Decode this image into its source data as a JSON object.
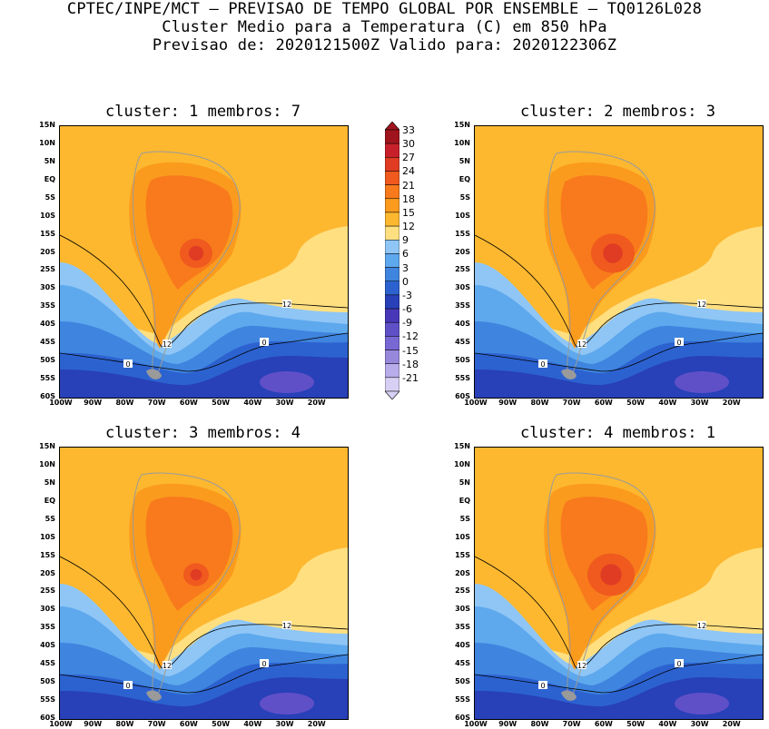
{
  "header": {
    "line1": "CPTEC/INPE/MCT – PREVISAO DE TEMPO GLOBAL POR ENSEMBLE – TQ0126L028",
    "line2": "Cluster Medio para a Temperatura (C) em 850 hPa",
    "line3": "Previsao de: 2020121500Z   Valido para: 2020122306Z"
  },
  "panels": [
    {
      "title": "cluster: 1  membros: 7"
    },
    {
      "title": "cluster: 2  membros: 3"
    },
    {
      "title": "cluster: 3  membros: 4"
    },
    {
      "title": "cluster: 4  membros: 1"
    }
  ],
  "axes": {
    "lat_labels": [
      "15N",
      "10N",
      "5N",
      "EQ",
      "5S",
      "10S",
      "15S",
      "20S",
      "25S",
      "30S",
      "35S",
      "40S",
      "45S",
      "50S",
      "55S",
      "60S"
    ],
    "lon_labels": [
      "100W",
      "90W",
      "80W",
      "70W",
      "60W",
      "50W",
      "40W",
      "30W",
      "20W"
    ]
  },
  "colorbar": {
    "levels": [
      "33",
      "30",
      "27",
      "24",
      "21",
      "18",
      "15",
      "12",
      "9",
      "6",
      "3",
      "0",
      "-3",
      "-6",
      "-9",
      "-12",
      "-15",
      "-18",
      "-21"
    ],
    "colors": [
      "#a0141e",
      "#c8202a",
      "#e03c24",
      "#f05a1e",
      "#f87a1c",
      "#fb9b1e",
      "#fdb830",
      "#ffdf80",
      "#8fc6f5",
      "#5ea8ed",
      "#3f84de",
      "#2c62d0",
      "#2840b8",
      "#4838b8",
      "#6050c8",
      "#7868d4",
      "#9888dc",
      "#b8acea",
      "#d8d0f4"
    ]
  },
  "contour_labels": {
    "p1": [
      "12",
      "12",
      "0",
      "0"
    ],
    "p2": [
      "12",
      "12",
      "0",
      "0"
    ],
    "p3": [
      "12",
      "12",
      "0",
      "0"
    ],
    "p4": [
      "12",
      "12",
      "0",
      "0"
    ]
  }
}
